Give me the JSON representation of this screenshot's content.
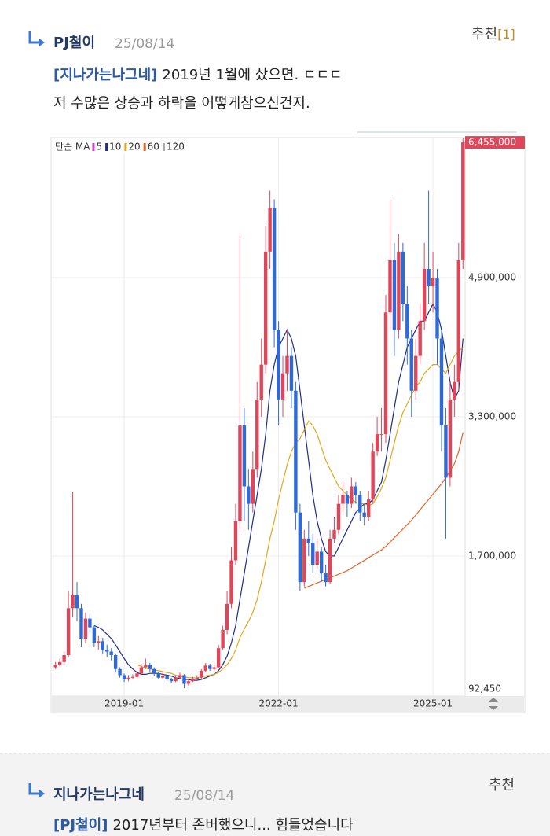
{
  "comments": [
    {
      "author": "PJ철이",
      "date": "25/08/14",
      "recommend": "추천",
      "recommend_count": "[1]",
      "mention": "[지나가는나그네]",
      "lines": [
        "2019년 1월에 샀으면. ㄷㄷㄷ",
        "저 수많은 상승과 하락을 어떻게참으신건지."
      ]
    },
    {
      "author": "지나가는나그네",
      "date": "25/08/14",
      "recommend": "추천",
      "mention": "[PJ철이]",
      "lines": [
        "2017년부터 존버했으니... 힘들었습니다"
      ]
    }
  ],
  "chart_data": {
    "type": "candlestick",
    "legend_label": "단순 MA",
    "up_color": "#e0465a",
    "down_color": "#2f6ad8",
    "x": [
      "2017-09",
      "2017-10",
      "2017-11",
      "2017-12",
      "2018-01",
      "2018-02",
      "2018-03",
      "2018-04",
      "2018-05",
      "2018-06",
      "2018-07",
      "2018-08",
      "2018-09",
      "2018-10",
      "2018-11",
      "2018-12",
      "2019-01",
      "2019-02",
      "2019-03",
      "2019-04",
      "2019-05",
      "2019-06",
      "2019-07",
      "2019-08",
      "2019-09",
      "2019-10",
      "2019-11",
      "2019-12",
      "2020-01",
      "2020-02",
      "2020-03",
      "2020-04",
      "2020-05",
      "2020-06",
      "2020-07",
      "2020-08",
      "2020-09",
      "2020-10",
      "2020-11",
      "2020-12",
      "2021-01",
      "2021-02",
      "2021-03",
      "2021-04",
      "2021-05",
      "2021-06",
      "2021-07",
      "2021-08",
      "2021-09",
      "2021-10",
      "2021-11",
      "2021-12",
      "2022-01",
      "2022-02",
      "2022-03",
      "2022-04",
      "2022-05",
      "2022-06",
      "2022-07",
      "2022-08",
      "2022-09",
      "2022-10",
      "2022-11",
      "2022-12",
      "2023-01",
      "2023-02",
      "2023-03",
      "2023-04",
      "2023-05",
      "2023-06",
      "2023-07",
      "2023-08",
      "2023-09",
      "2023-10",
      "2023-11",
      "2023-12",
      "2024-01",
      "2024-02",
      "2024-03",
      "2024-04",
      "2024-05",
      "2024-06",
      "2024-07",
      "2024-08",
      "2024-09",
      "2024-10",
      "2024-11",
      "2024-12",
      "2025-01",
      "2025-02",
      "2025-03",
      "2025-04",
      "2025-05",
      "2025-06",
      "2025-07",
      "2025-08"
    ],
    "open": [
      420000,
      450000,
      480000,
      560000,
      1100000,
      1250000,
      1100000,
      750000,
      980000,
      880000,
      700000,
      720000,
      620000,
      600000,
      560000,
      400000,
      330000,
      280000,
      300000,
      310000,
      350000,
      420000,
      450000,
      400000,
      350000,
      300000,
      320000,
      280000,
      260000,
      300000,
      330000,
      230000,
      260000,
      290000,
      300000,
      380000,
      440000,
      400000,
      420000,
      640000,
      850000,
      1150000,
      1650000,
      2100000,
      3200000,
      2500000,
      2300000,
      2700000,
      3500000,
      3900000,
      5200000,
      5700000,
      4300000,
      3500000,
      3800000,
      4000000,
      3600000,
      2200000,
      1400000,
      1900000,
      1850000,
      1600000,
      1750000,
      1500000,
      1400000,
      1900000,
      2000000,
      2300000,
      2400000,
      2300000,
      2500000,
      2400000,
      2200000,
      2150000,
      2350000,
      2900000,
      3100000,
      3100000,
      4500000,
      5100000,
      4300000,
      5200000,
      4600000,
      4200000,
      3600000,
      4000000,
      4400000,
      5000000,
      4800000,
      4900000,
      4200000,
      3200000,
      2600000,
      3500000,
      3700000,
      5100000
    ],
    "high": [
      480000,
      520000,
      600000,
      1300000,
      2440000,
      1400000,
      1150000,
      1050000,
      1020000,
      900000,
      780000,
      760000,
      680000,
      640000,
      580000,
      420000,
      350000,
      330000,
      340000,
      380000,
      460000,
      520000,
      470000,
      420000,
      370000,
      350000,
      340000,
      300000,
      330000,
      360000,
      340000,
      290000,
      310000,
      330000,
      400000,
      470000,
      460000,
      450000,
      680000,
      900000,
      1300000,
      1800000,
      2300000,
      5400000,
      3400000,
      2700000,
      2900000,
      3700000,
      4200000,
      5500000,
      5900000,
      5800000,
      4400000,
      4000000,
      4300000,
      4100000,
      3700000,
      2300000,
      2000000,
      2100000,
      1950000,
      1900000,
      1800000,
      1600000,
      2000000,
      2150000,
      2400000,
      2550000,
      2450000,
      2600000,
      2550000,
      2450000,
      2300000,
      2450000,
      3000000,
      3300000,
      3400000,
      4700000,
      5800000,
      5300000,
      5400000,
      5300000,
      4800000,
      4300000,
      4200000,
      4600000,
      5300000,
      5900000,
      5200000,
      5000000,
      4300000,
      3400000,
      3700000,
      3900000,
      5300000,
      6500000
    ],
    "low": [
      400000,
      430000,
      450000,
      540000,
      1000000,
      950000,
      650000,
      700000,
      800000,
      650000,
      620000,
      580000,
      540000,
      500000,
      360000,
      300000,
      250000,
      260000,
      280000,
      290000,
      330000,
      400000,
      370000,
      320000,
      280000,
      280000,
      260000,
      240000,
      250000,
      280000,
      180000,
      210000,
      250000,
      270000,
      290000,
      360000,
      380000,
      380000,
      410000,
      620000,
      800000,
      1100000,
      1600000,
      2000000,
      2100000,
      2000000,
      2200000,
      2600000,
      3300000,
      3800000,
      5000000,
      4100000,
      3200000,
      3300000,
      3600000,
      3400000,
      2000000,
      1300000,
      1350000,
      1700000,
      1500000,
      1550000,
      1400000,
      1350000,
      1380000,
      1850000,
      1950000,
      2200000,
      2150000,
      2250000,
      2300000,
      2100000,
      2050000,
      2100000,
      2300000,
      2850000,
      2900000,
      3000000,
      4300000,
      4000000,
      4200000,
      4400000,
      3900000,
      3300000,
      3500000,
      3900000,
      4300000,
      4600000,
      4500000,
      3900000,
      2900000,
      1900000,
      2500000,
      3300000,
      3600000,
      5000000
    ],
    "close": [
      450000,
      480000,
      560000,
      1100000,
      1250000,
      1100000,
      750000,
      980000,
      880000,
      700000,
      720000,
      620000,
      600000,
      560000,
      400000,
      330000,
      280000,
      300000,
      310000,
      350000,
      420000,
      450000,
      400000,
      350000,
      300000,
      320000,
      280000,
      260000,
      300000,
      330000,
      230000,
      260000,
      290000,
      300000,
      380000,
      440000,
      400000,
      420000,
      640000,
      850000,
      1150000,
      1650000,
      2100000,
      3200000,
      2500000,
      2300000,
      2700000,
      3500000,
      3900000,
      5200000,
      5700000,
      4300000,
      3500000,
      3800000,
      4000000,
      3600000,
      2200000,
      1400000,
      1900000,
      1850000,
      1600000,
      1750000,
      1500000,
      1400000,
      1900000,
      2000000,
      2300000,
      2400000,
      2300000,
      2500000,
      2400000,
      2200000,
      2150000,
      2350000,
      2900000,
      3100000,
      3100000,
      4500000,
      5100000,
      4300000,
      5200000,
      4600000,
      4200000,
      3600000,
      4000000,
      4400000,
      5000000,
      4800000,
      4900000,
      4200000,
      3200000,
      2600000,
      3500000,
      3700000,
      5100000,
      6455000
    ],
    "series": [
      {
        "name": "5",
        "color": "#d63fd6"
      },
      {
        "name": "10",
        "color": "#1f2d8a",
        "values": [
          null,
          null,
          null,
          null,
          null,
          null,
          null,
          null,
          null,
          900000,
          880000,
          850000,
          800000,
          750000,
          680000,
          600000,
          520000,
          450000,
          400000,
          360000,
          340000,
          340000,
          350000,
          350000,
          350000,
          340000,
          330000,
          320000,
          300000,
          290000,
          280000,
          280000,
          270000,
          270000,
          280000,
          300000,
          320000,
          340000,
          380000,
          450000,
          550000,
          700000,
          900000,
          1200000,
          1500000,
          1800000,
          2100000,
          2400000,
          2700000,
          3100000,
          3600000,
          3900000,
          4100000,
          4200000,
          4300000,
          4200000,
          4000000,
          3600000,
          3200000,
          2800000,
          2400000,
          2100000,
          1900000,
          1750000,
          1700000,
          1700000,
          1800000,
          1900000,
          2000000,
          2100000,
          2200000,
          2250000,
          2300000,
          2300000,
          2350000,
          2450000,
          2550000,
          2800000,
          3100000,
          3400000,
          3700000,
          3900000,
          4100000,
          4200000,
          4300000,
          4400000,
          4400000,
          4500000,
          4600000,
          4500000,
          4300000,
          4000000,
          3700000,
          3500000,
          3600000,
          4200000
        ]
      },
      {
        "name": "20",
        "color": "#e0a820",
        "values": [
          null,
          null,
          null,
          null,
          null,
          null,
          null,
          null,
          null,
          null,
          null,
          null,
          null,
          null,
          null,
          null,
          null,
          null,
          null,
          450000,
          430000,
          410000,
          400000,
          390000,
          380000,
          370000,
          360000,
          350000,
          330000,
          320000,
          310000,
          300000,
          300000,
          300000,
          310000,
          320000,
          330000,
          340000,
          360000,
          400000,
          450000,
          520000,
          620000,
          760000,
          860000,
          950000,
          1050000,
          1200000,
          1400000,
          1650000,
          1900000,
          2100000,
          2350000,
          2550000,
          2750000,
          2900000,
          3000000,
          3050000,
          3150000,
          3250000,
          3200000,
          3100000,
          2950000,
          2800000,
          2700000,
          2600000,
          2500000,
          2450000,
          2400000,
          2350000,
          2320000,
          2300000,
          2300000,
          2280000,
          2300000,
          2380000,
          2480000,
          2600000,
          2800000,
          3000000,
          3200000,
          3350000,
          3450000,
          3550000,
          3650000,
          3700000,
          3800000,
          3850000,
          3900000,
          3900000,
          3850000,
          3800000,
          3900000,
          4000000,
          4050000,
          4100000
        ]
      },
      {
        "name": "60",
        "color": "#e0642a",
        "values": [
          null,
          null,
          null,
          null,
          null,
          null,
          null,
          null,
          null,
          null,
          null,
          null,
          null,
          null,
          null,
          null,
          null,
          null,
          null,
          null,
          null,
          null,
          null,
          null,
          null,
          null,
          null,
          null,
          null,
          null,
          null,
          null,
          null,
          null,
          null,
          null,
          null,
          null,
          null,
          null,
          null,
          null,
          null,
          null,
          null,
          null,
          null,
          null,
          null,
          null,
          null,
          null,
          null,
          null,
          null,
          null,
          null,
          null,
          1330000,
          1350000,
          1370000,
          1390000,
          1410000,
          1430000,
          1450000,
          1470000,
          1490000,
          1510000,
          1530000,
          1560000,
          1590000,
          1620000,
          1650000,
          1680000,
          1710000,
          1740000,
          1770000,
          1810000,
          1860000,
          1910000,
          1960000,
          2010000,
          2060000,
          2110000,
          2170000,
          2230000,
          2290000,
          2350000,
          2410000,
          2470000,
          2530000,
          2600000,
          2680000,
          2760000,
          2900000,
          3120000
        ]
      },
      {
        "name": "120",
        "color": "#aaaaaa"
      }
    ],
    "ylim": [
      90000,
      6510000
    ],
    "yticks": [
      {
        "value": 92450,
        "label": "92,450"
      },
      {
        "value": 1700000,
        "label": "1,700,000"
      },
      {
        "value": 3300000,
        "label": "3,300,000"
      },
      {
        "value": 4900000,
        "label": "4,900,000"
      }
    ],
    "last_price": {
      "value": 6455000,
      "label": "6,455,000",
      "color": "#e0465a"
    },
    "xticks": [
      "2019-01",
      "2022-01",
      "2025-01"
    ],
    "grid": true
  }
}
